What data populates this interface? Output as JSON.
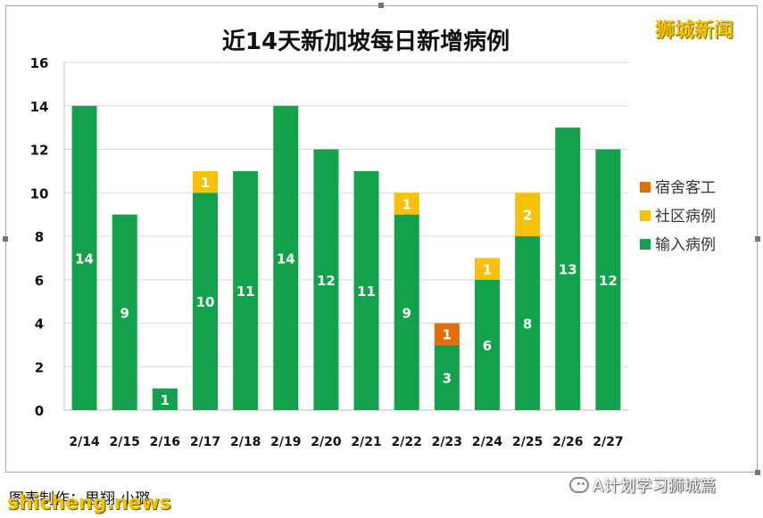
{
  "watermarks": {
    "top_right": "狮城新闻",
    "bottom_left": "shicheng.news",
    "wechat_account": "A计划学习狮城篇",
    "credit": "图表制作：思翔 小璐"
  },
  "colors": {
    "imported": "#13a24b",
    "community": "#f7c10a",
    "dormitory": "#e36c0a",
    "grid": "#d9d9d9",
    "bar_label": "#ffffff"
  },
  "chart_data": {
    "type": "bar",
    "stacked": true,
    "title": "近14天新加坡每日新增病例",
    "categories": [
      "2/14",
      "2/15",
      "2/16",
      "2/17",
      "2/18",
      "2/19",
      "2/20",
      "2/21",
      "2/22",
      "2/23",
      "2/24",
      "2/25",
      "2/26",
      "2/27"
    ],
    "series": [
      {
        "name": "输入病例",
        "values": [
          14,
          9,
          1,
          10,
          11,
          14,
          12,
          11,
          9,
          3,
          6,
          8,
          13,
          12
        ]
      },
      {
        "name": "社区病例",
        "values": [
          0,
          0,
          0,
          1,
          0,
          0,
          0,
          0,
          1,
          0,
          1,
          2,
          0,
          0
        ]
      },
      {
        "name": "宿舍客工",
        "values": [
          0,
          0,
          0,
          0,
          0,
          0,
          0,
          0,
          0,
          1,
          0,
          0,
          0,
          0
        ]
      }
    ],
    "ylim": [
      0,
      16
    ],
    "yticks": [
      0,
      2,
      4,
      6,
      8,
      10,
      12,
      14,
      16
    ],
    "grid": true,
    "legend_position": "right",
    "legend_order": [
      "宿舍客工",
      "社区病例",
      "输入病例"
    ]
  }
}
